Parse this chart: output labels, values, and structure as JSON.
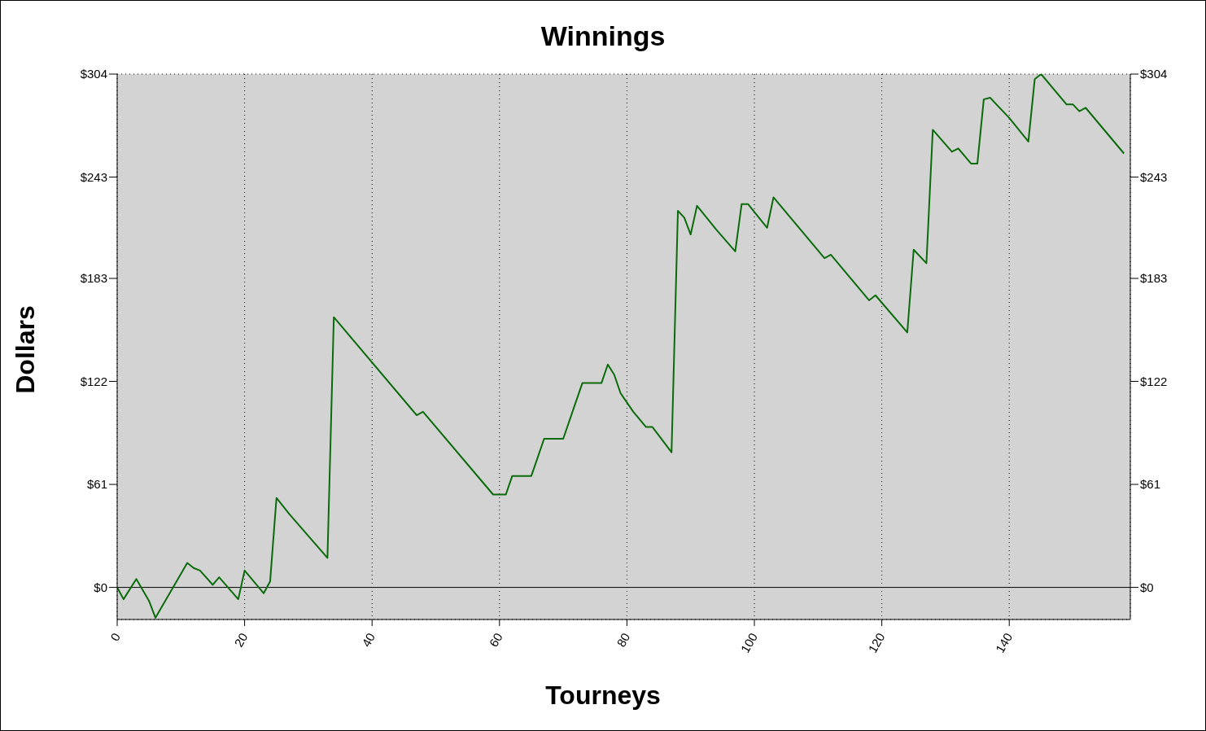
{
  "chart_data": {
    "type": "line",
    "title": "Winnings",
    "xlabel": "Tourneys",
    "ylabel": "Dollars",
    "x": [
      0,
      1,
      3,
      5,
      6,
      11,
      12,
      13,
      15,
      16,
      19,
      20,
      23,
      24,
      25,
      27,
      33,
      34,
      47,
      48,
      59,
      61,
      62,
      65,
      67,
      70,
      73,
      76,
      77,
      78,
      79,
      81,
      83,
      84,
      85,
      87,
      88,
      89,
      90,
      91,
      94,
      97,
      98,
      99,
      102,
      103,
      111,
      112,
      118,
      119,
      124,
      125,
      127,
      128,
      131,
      132,
      134,
      135,
      136,
      137,
      138,
      140,
      143,
      144,
      145,
      149,
      150,
      151,
      152,
      158
    ],
    "series": [
      {
        "color": "#0a6b0a",
        "values": [
          0,
          -7,
          5,
          -8,
          -18,
          14.5,
          11.5,
          10,
          1.5,
          6,
          -7,
          10,
          -3.5,
          3.5,
          53,
          43.5,
          17.5,
          160,
          102,
          104,
          55,
          55,
          66,
          66,
          88,
          88,
          121,
          121,
          132,
          126,
          115,
          104,
          95,
          95,
          90,
          80,
          223,
          219,
          209,
          226,
          212,
          199,
          227,
          227,
          213,
          231,
          195,
          197,
          170,
          173,
          151,
          200,
          192,
          271,
          258,
          260,
          251,
          251,
          289,
          290,
          286,
          278,
          264,
          301,
          304,
          286,
          286,
          282,
          284,
          257
        ]
      }
    ],
    "xlim": [
      0,
      159
    ],
    "xticks": [
      0,
      20,
      40,
      60,
      80,
      100,
      120,
      140
    ],
    "ylim": [
      -19,
      304
    ],
    "yticks": [
      {
        "value": 0,
        "label": "$0"
      },
      {
        "value": 61,
        "label": "$61"
      },
      {
        "value": 122,
        "label": "$122"
      },
      {
        "value": 183,
        "label": "$183"
      },
      {
        "value": 243,
        "label": "$243"
      },
      {
        "value": 304,
        "label": "$304"
      }
    ],
    "y2lim": [
      -19,
      304
    ],
    "y2ticks": [
      {
        "value": 0,
        "label": "$0"
      },
      {
        "value": 61,
        "label": "$61"
      },
      {
        "value": 122,
        "label": "$122"
      },
      {
        "value": 183,
        "label": "$183"
      },
      {
        "value": 243,
        "label": "$243"
      },
      {
        "value": 304,
        "label": "$304"
      }
    ],
    "ref_lines": [
      {
        "axis": "y",
        "value": 0,
        "color": "#000000",
        "line_style": "solid"
      }
    ],
    "grid": true,
    "marker": "none",
    "line_style": "solid"
  }
}
